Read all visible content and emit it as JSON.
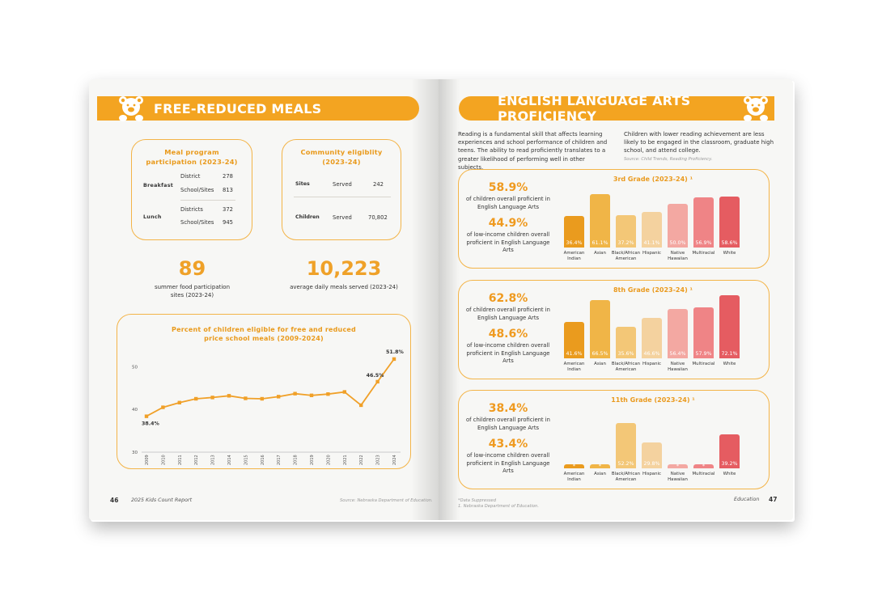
{
  "left_page": {
    "banner_title": "FREE-REDUCED MEALS",
    "meal_program": {
      "title_line1": "Meal program",
      "title_line2": "participation (2023-24)",
      "breakfast_label": "Breakfast",
      "lunch_label": "Lunch",
      "breakfast_rows": [
        {
          "label": "District",
          "value": "278"
        },
        {
          "label": "School/Sites",
          "value": "813"
        }
      ],
      "lunch_rows": [
        {
          "label": "Districts",
          "value": "372"
        },
        {
          "label": "School/Sites",
          "value": "945"
        }
      ]
    },
    "community": {
      "title_line1": "Community eligiblity",
      "title_line2": "(2023-24)",
      "rows": [
        {
          "label": "Sites",
          "sub": "Served",
          "value": "242"
        },
        {
          "label": "Children",
          "sub": "Served",
          "value": "70,802"
        }
      ]
    },
    "stat1": {
      "value": "89",
      "caption_line1": "summer food participation",
      "caption_line2": "sites (2023-24)"
    },
    "stat2": {
      "value": "10,223",
      "caption_line1": "average daily meals served (2023-24)"
    },
    "chart_title_line1": "Percent of children eligible for free and reduced",
    "chart_title_line2": "price school meals (2009-2024)",
    "page_number": "46",
    "footer": "2025 Kids Count Report",
    "source": "Source: Nebraska Department of Education."
  },
  "chart_data": {
    "type": "line",
    "title": "Percent of children eligible for free and reduced price school meals (2009-2024)",
    "x": [
      "2009",
      "2010",
      "2011",
      "2012",
      "2013",
      "2014",
      "2015",
      "2016",
      "2017",
      "2018",
      "2019",
      "2020",
      "2021",
      "2022",
      "2023",
      "2024"
    ],
    "series": [
      {
        "values": [
          38.4,
          40.5,
          41.6,
          42.5,
          42.8,
          43.2,
          42.6,
          42.5,
          43.0,
          43.7,
          43.3,
          43.6,
          44.1,
          41.0,
          46.5,
          51.8
        ]
      }
    ],
    "point_labels": {
      "0": "38.4%",
      "14": "46.5%",
      "15": "51.8%"
    },
    "yticks": [
      30,
      40,
      50
    ],
    "ylim": [
      30,
      55
    ],
    "color": "#f0a028"
  },
  "right_page": {
    "banner_title": "ENGLISH LANGUAGE ARTS PROFICIENCY",
    "intro_left": "Reading is a fundamental skill that affects learning experiences and school performance of children and teens. The ability to read proficiently translates to a greater likelihood of performing well in other subjects.",
    "intro_right": "Children with lower reading achievement are less likely to be engaged in the classroom, graduate high school, and attend college.",
    "intro_source": "Source: Child Trends, Reading Proficiency.",
    "categories": [
      "American Indian",
      "Asian",
      "Black/African American",
      "Hispanic",
      "Native Hawaiian",
      "Multiracial",
      "White"
    ],
    "bar_colors": [
      "#ea9b1e",
      "#f0b547",
      "#f3c777",
      "#f4d29f",
      "#f3a8a2",
      "#ef8486",
      "#e55c61"
    ],
    "grades": [
      {
        "title": "3rd Grade (2023-24) ¹",
        "overall_pct": "58.9%",
        "overall_text": "of children overall proficient in English Language Arts",
        "low_pct": "44.9%",
        "low_text": "of low-income children overall proficient in English Language Arts",
        "values": [
          36.4,
          61.1,
          37.2,
          41.1,
          50.0,
          56.9,
          58.6
        ],
        "labels": [
          "36.4%",
          "61.1%",
          "37.2%",
          "41.1%",
          "50.0%",
          "56.9%",
          "58.6%"
        ]
      },
      {
        "title": "8th Grade (2023-24) ¹",
        "overall_pct": "62.8%",
        "overall_text": "of children overall proficient in English Language Arts",
        "low_pct": "48.6%",
        "low_text": "of low-income children overall proficient in English Language Arts",
        "values": [
          41.6,
          66.5,
          35.6,
          46.6,
          56.4,
          57.9,
          72.1
        ],
        "labels": [
          "41.6%",
          "66.5%",
          "35.6%",
          "46.6%",
          "56.4%",
          "57.9%",
          "72.1%"
        ]
      },
      {
        "title": "11th Grade (2023-24) ¹",
        "overall_pct": "38.4%",
        "overall_text": "of children overall proficient in English Language Arts",
        "low_pct": "43.4%",
        "low_text": "of low-income children overall proficient in English Language Arts",
        "values": [
          null,
          null,
          52.2,
          29.8,
          null,
          null,
          39.2
        ],
        "labels": [
          "*",
          "*",
          "52.2%",
          "29.8%",
          "*",
          "*",
          "39.2%"
        ]
      }
    ],
    "footnote1": "*Data Suppressed",
    "footnote2": "1. Nebraska Department of Education.",
    "footer": "Education",
    "page_number": "47"
  }
}
